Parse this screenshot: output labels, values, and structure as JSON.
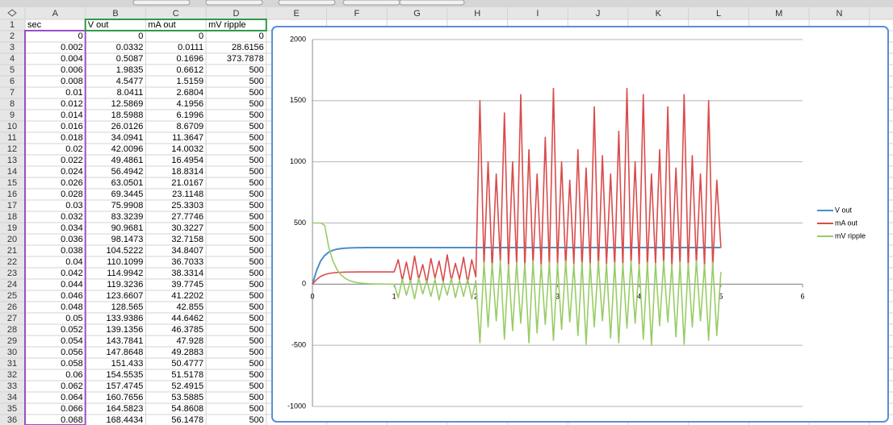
{
  "sheet": {
    "columns": [
      "A",
      "B",
      "C",
      "D",
      "E",
      "F",
      "G",
      "H",
      "I",
      "J",
      "K",
      "L",
      "M",
      "N"
    ],
    "row_numbers": [
      1,
      2,
      3,
      4,
      5,
      6,
      7,
      8,
      9,
      10,
      11,
      12,
      13,
      14,
      15,
      16,
      17,
      18,
      19,
      20,
      21,
      22,
      23,
      24,
      25,
      26,
      27,
      28,
      29,
      30,
      31,
      32,
      33,
      34,
      35,
      36
    ],
    "header": [
      "sec",
      "V out",
      "mA out",
      "mV ripple"
    ],
    "cells": [
      [
        0,
        0,
        0,
        0
      ],
      [
        0.002,
        0.0332,
        0.0111,
        28.6156
      ],
      [
        0.004,
        0.5087,
        0.1696,
        373.7878
      ],
      [
        0.006,
        1.9835,
        0.6612,
        500
      ],
      [
        0.008,
        4.5477,
        1.5159,
        500
      ],
      [
        0.01,
        8.0411,
        2.6804,
        500
      ],
      [
        0.012,
        12.5869,
        4.1956,
        500
      ],
      [
        0.014,
        18.5988,
        6.1996,
        500
      ],
      [
        0.016,
        26.0126,
        8.6709,
        500
      ],
      [
        0.018,
        34.0941,
        11.3647,
        500
      ],
      [
        0.02,
        42.0096,
        14.0032,
        500
      ],
      [
        0.022,
        49.4861,
        16.4954,
        500
      ],
      [
        0.024,
        56.4942,
        18.8314,
        500
      ],
      [
        0.026,
        63.0501,
        21.0167,
        500
      ],
      [
        0.028,
        69.3445,
        23.1148,
        500
      ],
      [
        0.03,
        75.9908,
        25.3303,
        500
      ],
      [
        0.032,
        83.3239,
        27.7746,
        500
      ],
      [
        0.034,
        90.9681,
        30.3227,
        500
      ],
      [
        0.036,
        98.1473,
        32.7158,
        500
      ],
      [
        0.038,
        104.5222,
        34.8407,
        500
      ],
      [
        0.04,
        110.1099,
        36.7033,
        500
      ],
      [
        0.042,
        114.9942,
        38.3314,
        500
      ],
      [
        0.044,
        119.3236,
        39.7745,
        500
      ],
      [
        0.046,
        123.6607,
        41.2202,
        500
      ],
      [
        0.048,
        128.565,
        42.855,
        500
      ],
      [
        0.05,
        133.9386,
        44.6462,
        500
      ],
      [
        0.052,
        139.1356,
        46.3785,
        500
      ],
      [
        0.054,
        143.7841,
        47.928,
        500
      ],
      [
        0.056,
        147.8648,
        49.2883,
        500
      ],
      [
        0.058,
        151.433,
        50.4777,
        500
      ],
      [
        0.06,
        154.5535,
        51.5178,
        500
      ],
      [
        0.062,
        157.4745,
        52.4915,
        500
      ],
      [
        0.064,
        160.7656,
        53.5885,
        500
      ],
      [
        0.066,
        164.5823,
        54.8608,
        500
      ],
      [
        0.068,
        168.4434,
        56.1478,
        500
      ]
    ]
  },
  "chart_data": {
    "type": "line",
    "x": [
      0,
      0.05,
      0.1,
      0.15,
      0.2,
      0.25,
      0.3,
      0.35,
      0.4,
      0.45,
      0.5,
      0.55,
      0.6,
      0.65,
      0.7,
      0.75,
      0.8,
      0.85,
      0.9,
      0.95,
      1,
      1.05,
      1.1,
      1.15,
      1.2,
      1.25,
      1.3,
      1.35,
      1.4,
      1.45,
      1.5,
      1.55,
      1.6,
      1.65,
      1.7,
      1.75,
      1.8,
      1.85,
      1.9,
      1.95,
      2,
      2.05,
      2.1,
      2.15,
      2.2,
      2.25,
      2.3,
      2.35,
      2.4,
      2.45,
      2.5,
      2.55,
      2.6,
      2.65,
      2.7,
      2.75,
      2.8,
      2.85,
      2.9,
      2.95,
      3,
      3.05,
      3.1,
      3.15,
      3.2,
      3.25,
      3.3,
      3.35,
      3.4,
      3.45,
      3.5,
      3.55,
      3.6,
      3.65,
      3.7,
      3.75,
      3.8,
      3.85,
      3.9,
      3.95,
      4,
      4.05,
      4.1,
      4.15,
      4.2,
      4.25,
      4.3,
      4.35,
      4.4,
      4.45,
      4.5,
      4.55,
      4.6,
      4.65,
      4.7,
      4.75,
      4.8,
      4.85,
      4.9,
      4.95,
      5
    ],
    "series": [
      {
        "name": "V out",
        "color": "#4a8fc8",
        "values": [
          0,
          110,
          190,
          235,
          262,
          277,
          286,
          291,
          294,
          296,
          297,
          298,
          298,
          299,
          299,
          299,
          299,
          299,
          299,
          299,
          299,
          299,
          299,
          299,
          299,
          299,
          299,
          299,
          299,
          299,
          299,
          299,
          299,
          299,
          299,
          299,
          299,
          299,
          299,
          299,
          299,
          299,
          299,
          299,
          299,
          299,
          299,
          299,
          299,
          299,
          299,
          299,
          299,
          299,
          299,
          299,
          299,
          299,
          299,
          299,
          299,
          299,
          299,
          299,
          299,
          299,
          299,
          299,
          299,
          299,
          299,
          299,
          299,
          299,
          299,
          299,
          299,
          299,
          299,
          299,
          299,
          299,
          299,
          299,
          299,
          299,
          299,
          299,
          299,
          299,
          299,
          299,
          299,
          299,
          299,
          299,
          299,
          299,
          299,
          299,
          299
        ]
      },
      {
        "name": "mA out",
        "color": "#d94b4b",
        "values": [
          0,
          37,
          63,
          78,
          87,
          92,
          95,
          97,
          98,
          99,
          99,
          100,
          100,
          100,
          100,
          100,
          100,
          100,
          100,
          100,
          100,
          200,
          30,
          180,
          20,
          230,
          40,
          160,
          10,
          210,
          50,
          190,
          20,
          240,
          30,
          170,
          40,
          220,
          10,
          200,
          60,
          1500,
          150,
          1000,
          120,
          900,
          180,
          1400,
          130,
          1000,
          150,
          1550,
          120,
          1100,
          160,
          900,
          140,
          1200,
          130,
          1600,
          150,
          1000,
          140,
          850,
          160,
          1100,
          130,
          950,
          150,
          1450,
          120,
          1050,
          160,
          900,
          140,
          1250,
          130,
          1600,
          150,
          1000,
          140,
          1550,
          130,
          900,
          160,
          1100,
          140,
          1450,
          130,
          950,
          150,
          1550,
          120,
          1050,
          160,
          900,
          140,
          1500,
          130,
          850,
          300
        ]
      },
      {
        "name": "mV ripple",
        "color": "#99cc66",
        "values": [
          500,
          500,
          500,
          480,
          300,
          190,
          120,
          75,
          48,
          30,
          19,
          12,
          8,
          5,
          3,
          2,
          1,
          1,
          0,
          0,
          0,
          -110,
          40,
          -90,
          30,
          -120,
          50,
          -80,
          30,
          -100,
          40,
          -130,
          20,
          -90,
          50,
          -110,
          30,
          -100,
          40,
          -120,
          30,
          -480,
          180,
          -350,
          170,
          -300,
          190,
          -450,
          160,
          -380,
          180,
          -320,
          170,
          -480,
          190,
          -400,
          160,
          -330,
          180,
          -460,
          170,
          -370,
          190,
          -310,
          160,
          -420,
          180,
          -490,
          170,
          -350,
          190,
          -300,
          160,
          -440,
          180,
          -480,
          170,
          -360,
          190,
          -320,
          160,
          -450,
          180,
          -500,
          170,
          -340,
          190,
          -310,
          160,
          -430,
          180,
          -490,
          170,
          -350,
          190,
          -300,
          160,
          -460,
          180,
          -420,
          100
        ]
      }
    ],
    "xlim": [
      0,
      6
    ],
    "xticks": [
      0,
      1,
      2,
      3,
      4,
      5,
      6
    ],
    "ylim": [
      -1000,
      2000
    ],
    "yticks": [
      -1000,
      -500,
      0,
      500,
      1000,
      1500,
      2000
    ],
    "grid": true,
    "legend": "right"
  }
}
